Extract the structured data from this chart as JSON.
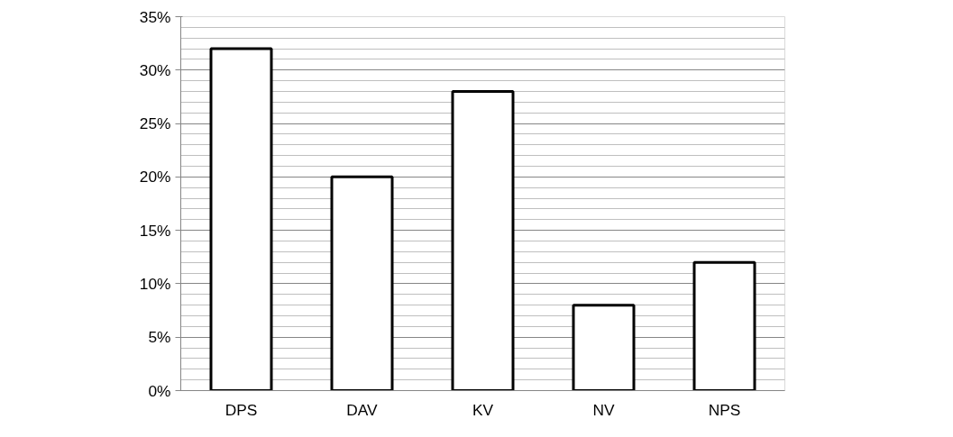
{
  "chart_data": {
    "type": "bar",
    "categories": [
      "DPS",
      "DAV",
      "KV",
      "NV",
      "NPS"
    ],
    "values": [
      32,
      20,
      28,
      8,
      12
    ],
    "color": "#000000",
    "ylim": [
      0,
      35
    ],
    "yticks": [
      {
        "value": 0,
        "label": "0%"
      },
      {
        "value": 5,
        "label": "5%"
      },
      {
        "value": 10,
        "label": "10%"
      },
      {
        "value": 15,
        "label": "15%"
      },
      {
        "value": 20,
        "label": "20%"
      },
      {
        "value": 25,
        "label": "25%"
      },
      {
        "value": 30,
        "label": "30%"
      },
      {
        "value": 35,
        "label": "35%"
      }
    ],
    "grid": "y"
  }
}
